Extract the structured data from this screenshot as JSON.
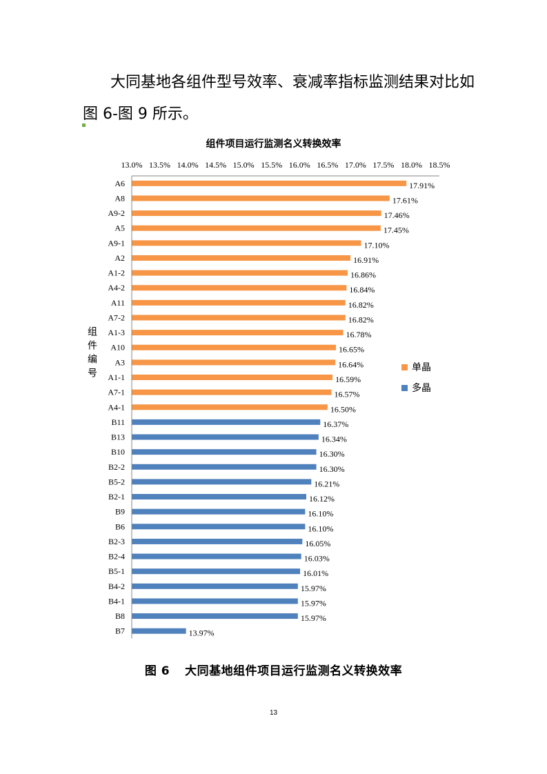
{
  "paragraph": {
    "line1": "大同基地各组件型号效率、衰减率指标监测结果对比如",
    "line2": "图 6-图 9 所示。"
  },
  "chart_data": {
    "type": "bar",
    "orientation": "horizontal",
    "title": "组件项目运行监测名义转换效率",
    "ylabel": "组件编号",
    "xlabel": "",
    "xlim": [
      0.13,
      0.185
    ],
    "x_ticks": [
      "13.0%",
      "13.5%",
      "14.0%",
      "14.5%",
      "15.0%",
      "15.5%",
      "16.0%",
      "16.5%",
      "17.0%",
      "17.5%",
      "18.0%",
      "18.5%"
    ],
    "x_axis_position": "top",
    "grid": false,
    "legend_position": "right",
    "series": [
      {
        "name": "单晶",
        "color": "#f79646",
        "categories": [
          "A6",
          "A8",
          "A9-2",
          "A5",
          "A9-1",
          "A2",
          "A1-2",
          "A4-2",
          "A11",
          "A7-2",
          "A1-3",
          "A10",
          "A3",
          "A1-1",
          "A7-1",
          "A4-1"
        ],
        "values": [
          0.1791,
          0.1761,
          0.1746,
          0.1745,
          0.171,
          0.1691,
          0.1686,
          0.1684,
          0.1682,
          0.1682,
          0.1678,
          0.1665,
          0.1664,
          0.1659,
          0.1657,
          0.165
        ],
        "labels": [
          "17.91%",
          "17.61%",
          "17.46%",
          "17.45%",
          "17.10%",
          "16.91%",
          "16.86%",
          "16.84%",
          "16.82%",
          "16.82%",
          "16.78%",
          "16.65%",
          "16.64%",
          "16.59%",
          "16.57%",
          "16.50%"
        ]
      },
      {
        "name": "多晶",
        "color": "#4f81bd",
        "categories": [
          "B11",
          "B13",
          "B10",
          "B2-2",
          "B5-2",
          "B2-1",
          "B9",
          "B6",
          "B2-3",
          "B2-4",
          "B5-1",
          "B4-2",
          "B4-1",
          "B8",
          "B7"
        ],
        "values": [
          0.1637,
          0.1634,
          0.163,
          0.163,
          0.1621,
          0.1612,
          0.161,
          0.161,
          0.1605,
          0.1603,
          0.1601,
          0.1597,
          0.1597,
          0.1597,
          0.1397
        ],
        "labels": [
          "16.37%",
          "16.34%",
          "16.30%",
          "16.30%",
          "16.21%",
          "16.12%",
          "16.10%",
          "16.10%",
          "16.05%",
          "16.03%",
          "16.01%",
          "15.97%",
          "15.97%",
          "15.97%",
          "13.97%"
        ]
      }
    ]
  },
  "caption": {
    "number": "图 6",
    "text": "大同基地组件项目运行监测名义转换效率"
  },
  "page_number": "13"
}
